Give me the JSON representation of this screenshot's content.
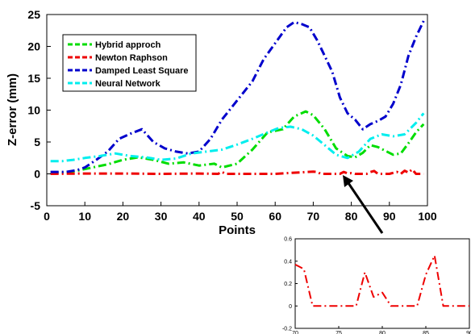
{
  "chart_data": [
    {
      "type": "line",
      "title": "",
      "xlabel": "Points",
      "ylabel": "Z-error (mm)",
      "xlim": [
        0,
        100
      ],
      "ylim": [
        -5,
        25
      ],
      "xticks": [
        "0",
        "10",
        "20",
        "30",
        "40",
        "50",
        "60",
        "70",
        "80",
        "90",
        "100"
      ],
      "yticks": [
        "-5",
        "0",
        "5",
        "10",
        "15",
        "20",
        "25"
      ],
      "grid": false,
      "legend_position": "top-left",
      "series": [
        {
          "name": "Hybrid approch",
          "color": "#00dd00",
          "x": [
            1,
            5,
            8,
            12,
            16,
            20,
            24,
            28,
            32,
            36,
            40,
            44,
            46,
            50,
            54,
            58,
            62,
            65,
            68,
            70,
            73,
            76,
            79,
            81,
            83,
            85,
            87,
            89,
            91,
            93,
            95,
            97,
            99
          ],
          "y": [
            0.2,
            0.2,
            0.5,
            1.0,
            1.5,
            2.2,
            2.6,
            2.2,
            1.6,
            1.8,
            1.3,
            1.6,
            1.0,
            1.6,
            3.8,
            6.5,
            7.0,
            9.0,
            9.8,
            9.2,
            7.0,
            4.0,
            2.8,
            2.6,
            3.3,
            4.5,
            4.2,
            3.6,
            3.0,
            3.2,
            4.8,
            6.5,
            7.8
          ]
        },
        {
          "name": "Newton Raphson",
          "color": "#ee0000",
          "x": [
            1,
            10,
            20,
            30,
            40,
            45,
            46,
            47,
            50,
            60,
            70,
            71,
            72,
            76,
            77,
            78,
            79,
            80,
            81,
            84,
            85,
            86,
            87,
            90,
            92,
            93,
            94,
            95,
            96,
            97,
            98,
            99
          ],
          "y": [
            0,
            0.05,
            0.05,
            0,
            0.05,
            0,
            0.3,
            0,
            0,
            0,
            0.35,
            0.3,
            0,
            0,
            0,
            0.3,
            0.08,
            0.12,
            0,
            0,
            0.28,
            0.45,
            0,
            0,
            0.3,
            0,
            0.5,
            0.2,
            0.7,
            0,
            0,
            0
          ]
        },
        {
          "name": "Damped Least Square",
          "color": "#0000cc",
          "x": [
            1,
            5,
            8,
            10,
            13,
            16,
            19,
            22,
            25,
            28,
            31,
            34,
            37,
            40,
            43,
            46,
            50,
            54,
            57,
            60,
            63,
            65,
            67,
            69,
            71,
            73,
            75,
            77,
            79,
            81,
            83,
            85,
            87,
            89,
            91,
            93,
            95,
            97,
            99
          ],
          "y": [
            0.3,
            0.3,
            0.6,
            1.0,
            2.2,
            3.5,
            5.5,
            6.3,
            7.0,
            5.0,
            4.0,
            3.5,
            3.2,
            3.5,
            5.5,
            8.5,
            11.5,
            14.5,
            18.0,
            20.5,
            23.0,
            23.8,
            23.5,
            23.0,
            21.0,
            18.5,
            16.0,
            12.0,
            9.5,
            8.5,
            7.0,
            7.8,
            8.3,
            9.0,
            11.0,
            14.0,
            18.5,
            21.5,
            24.0
          ]
        },
        {
          "name": "Neural Network",
          "color": "#00eeee",
          "x": [
            1,
            4,
            7,
            10,
            14,
            18,
            22,
            26,
            30,
            34,
            38,
            42,
            46,
            50,
            54,
            58,
            61,
            64,
            67,
            70,
            73,
            76,
            79,
            82,
            85,
            88,
            91,
            94,
            97,
            99
          ],
          "y": [
            2.0,
            2.0,
            2.2,
            2.5,
            2.8,
            3.2,
            2.8,
            2.6,
            2.2,
            2.4,
            3.2,
            3.5,
            3.8,
            4.6,
            5.5,
            6.5,
            7.2,
            7.4,
            7.0,
            6.0,
            4.5,
            3.0,
            2.5,
            3.5,
            5.5,
            6.2,
            5.9,
            6.2,
            8.0,
            9.5
          ]
        }
      ],
      "annotation": "arrow from x≈80 (Newton Raphson) to zoomed inset"
    },
    {
      "type": "line",
      "title": "",
      "xlabel": "",
      "ylabel": "",
      "xlim": [
        70,
        90
      ],
      "ylim": [
        -0.2,
        0.6
      ],
      "xticks": [
        "70",
        "75",
        "80",
        "85",
        "90"
      ],
      "yticks": [
        "-0.2",
        "0",
        "0.2",
        "0.4",
        "0.6"
      ],
      "series": [
        {
          "color": "#ee0000",
          "x": [
            70,
            71,
            72,
            76,
            77,
            78,
            79,
            80,
            81,
            84,
            85,
            86,
            87,
            90
          ],
          "y": [
            0.37,
            0.33,
            0,
            0,
            0,
            0.3,
            0.08,
            0.12,
            0,
            0,
            0.28,
            0.45,
            0,
            0
          ]
        }
      ]
    }
  ]
}
